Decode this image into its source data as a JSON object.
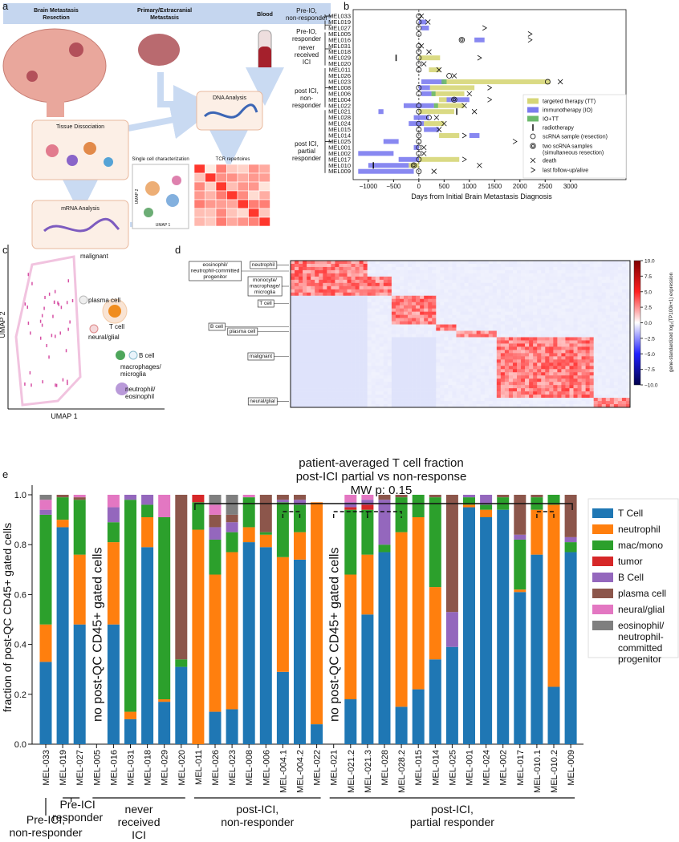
{
  "panel_labels": [
    "a",
    "b",
    "c",
    "d",
    "e"
  ],
  "diagram_a": {
    "sources": [
      "Brain Metastasis\nResection",
      "Primary/Extracranial\nMetastasis",
      "Blood"
    ],
    "steps": [
      "Tissue Dissociation",
      "DNA Analysis",
      "mRNA Analysis"
    ],
    "outputs": [
      "Single cell characterization",
      "TCR repertoires"
    ],
    "umap_axes": [
      "UMAP 2",
      "UMAP 1"
    ]
  },
  "umap_c": {
    "xlabel": "UMAP 1",
    "ylabel": "UMAP 2",
    "clusters": [
      "malignant",
      "plasma cell",
      "T cell",
      "neural/glial",
      "B cell",
      "macrophages/\nmicroglia",
      "neutrophil/\neosinophil"
    ]
  },
  "heatmap_d": {
    "row_labels": [
      "eosinophil/\nneutrophil-committed\nprogenitor",
      "neutrophil",
      "monocyte/\nmacrophage/\nmicroglia",
      "T cell",
      "B cell",
      "plasma cell",
      "malignant",
      "neural/glial"
    ],
    "colorbar": {
      "label": "gene-standardized log₂(TP100k+1) expression",
      "lim": [
        -10,
        10
      ],
      "ticks": [
        {
          "value": 10,
          "label": "10.0"
        },
        7.5,
        {
          "value": 5,
          "label": "5.0"
        },
        2.5,
        {
          "value": 0,
          "label": "0.0"
        },
        {
          "value": -2.5,
          "label": "−2.5"
        },
        {
          "value": -5,
          "label": "−5.0"
        },
        {
          "value": -7.5,
          "label": "−7.5"
        },
        {
          "value": -10,
          "label": "−10.0"
        }
      ]
    }
  },
  "chart_data": [
    {
      "type": "swimmer",
      "xlabel": "Days from Initial Brain Metastasis Diagnosis",
      "xlim": [
        -1300,
        4100
      ],
      "xticks": [
        {
          "value": -1000,
          "label": "−1000"
        },
        {
          "value": -500,
          "label": "−500"
        },
        0,
        500,
        1000,
        1500,
        2000,
        2500,
        3000
      ],
      "groups": [
        "Pre-IO,\nnon-responder",
        "Pre-IO,\nresponder",
        "never\nreceived\nICI",
        "post ICI,\nnon-\nresponder",
        "post ICI,\npartial\nresponder"
      ],
      "categories": [
        "MEL033",
        "MEL019",
        "MEL027",
        "MEL005",
        "MEL016",
        "MEL031",
        "MEL018",
        "MEL029",
        "MEL020",
        "MEL011",
        "MEL026",
        "MEL023",
        "MEL008",
        "MEL006",
        "MEL004",
        "MEL022",
        "MEL021",
        "MEL028",
        "MEL024",
        "MEL015",
        "MEL014",
        "MEL025",
        "MEL001",
        "MEL002",
        "MEL017",
        "MEL010",
        "MEL009"
      ],
      "series": [
        {
          "name": "targeted therapy (TT)",
          "color": "#d6d677",
          "marker": "rect",
          "values": [
            null,
            null,
            null,
            null,
            null,
            null,
            null,
            [
              0,
              420
            ],
            null,
            [
              200,
              420
            ],
            null,
            [
              500,
              2600
            ],
            [
              220,
              1100
            ],
            [
              250,
              900
            ],
            [
              400,
              550
            ],
            [
              300,
              900
            ],
            [
              0,
              700
            ],
            null,
            [
              100,
              500
            ],
            null,
            [
              400,
              800
            ],
            null,
            null,
            null,
            [
              0,
              800
            ],
            [
              -200,
              0
            ],
            null
          ]
        },
        {
          "name": "immunotherapy (IO)",
          "color": "#7b7bef",
          "marker": "rect",
          "values": [
            null,
            [
              0,
              150
            ],
            [
              50,
              200
            ],
            null,
            [
              1100,
              1300
            ],
            null,
            null,
            null,
            null,
            null,
            null,
            [
              50,
              500
            ],
            [
              0,
              220
            ],
            [
              50,
              250
            ],
            [
              550,
              1000
            ],
            [
              -300,
              300
            ],
            [
              -800,
              -700
            ],
            [
              -100,
              200
            ],
            [
              -200,
              100
            ],
            [
              100,
              400
            ],
            [
              1000,
              1200
            ],
            [
              -700,
              -400
            ],
            [
              -100,
              0
            ],
            [
              -1200,
              -500
            ],
            [
              -400,
              0
            ],
            [
              -1000,
              -200
            ],
            [
              -1200,
              -100
            ]
          ]
        },
        {
          "name": "IO+TT",
          "color": "#6cb96c",
          "marker": "rect",
          "values": [
            null,
            null,
            null,
            null,
            null,
            null,
            null,
            null,
            null,
            null,
            null,
            [
              450,
              550
            ],
            null,
            [
              250,
              330
            ],
            null,
            [
              300,
              380
            ],
            null,
            null,
            null,
            null,
            null,
            null,
            null,
            null,
            null,
            null,
            null
          ]
        },
        {
          "name": "radiotherapy",
          "color": "#111111",
          "marker": "vline",
          "values": [
            null,
            null,
            null,
            null,
            null,
            null,
            null,
            -450,
            null,
            null,
            null,
            null,
            null,
            null,
            null,
            null,
            750,
            null,
            null,
            null,
            null,
            null,
            null,
            null,
            null,
            -900,
            null
          ]
        },
        {
          "name": "scRNA sample (resection)",
          "color": "#111111",
          "marker": "circle",
          "values": [
            0,
            0,
            0,
            0,
            null,
            0,
            0,
            0,
            0,
            0,
            600,
            2550,
            0,
            0,
            null,
            0,
            0,
            200,
            0,
            0,
            0,
            0,
            0,
            0,
            0,
            null,
            0
          ]
        },
        {
          "name": "two scRNA samples\n(simultaneous resection)",
          "color": "#111111",
          "marker": "double-circle",
          "values": [
            null,
            null,
            null,
            null,
            850,
            null,
            null,
            null,
            null,
            null,
            null,
            null,
            null,
            null,
            700,
            null,
            null,
            null,
            null,
            null,
            null,
            null,
            null,
            null,
            null,
            -100,
            null
          ]
        },
        {
          "name": "death",
          "color": "#111111",
          "marker": "x",
          "values": [
            50,
            180,
            null,
            null,
            null,
            50,
            200,
            null,
            100,
            400,
            700,
            2800,
            null,
            1000,
            null,
            900,
            1100,
            350,
            500,
            400,
            null,
            null,
            100,
            100,
            null,
            1200,
            300
          ]
        },
        {
          "name": "last follow-up/alive",
          "color": "#111111",
          "marker": "triangle",
          "values": [
            null,
            null,
            1300,
            2200,
            2200,
            null,
            null,
            1200,
            null,
            null,
            null,
            null,
            1400,
            null,
            1400,
            null,
            null,
            null,
            null,
            null,
            900,
            1900,
            null,
            null,
            900,
            null,
            null
          ]
        }
      ]
    },
    {
      "type": "stacked_bar",
      "title": "patient-averaged T cell fraction\npost-ICI partial vs non-response\nMW p: 0.15",
      "ylabel": "fraction of post-QC CD45+ gated cells",
      "ylim": [
        0,
        1
      ],
      "yticks": [
        {
          "value": 0,
          "label": "0.0"
        },
        {
          "value": 0.2,
          "label": "0.2"
        },
        {
          "value": 0.4,
          "label": "0.4"
        },
        {
          "value": 0.6,
          "label": "0.6"
        },
        {
          "value": 0.8,
          "label": "0.8"
        },
        {
          "value": 1,
          "label": "1.0"
        }
      ],
      "annotations": [
        "no post-QC CD45+ gated cells",
        "no post-QC CD45+ gated cells"
      ],
      "groups": [
        "Pre-ICI,\nnon-responder",
        "Pre-ICI\nresponder",
        "never\nreceived\nICI",
        "post-ICI,\nnon-responder",
        "post-ICI,\npartial responder"
      ],
      "categories": [
        "MEL-033",
        "MEL-019",
        "MEL-027",
        "MEL-005",
        "MEL-016",
        "MEL-031",
        "MEL-018",
        "MEL-029",
        "MEL-020",
        "MEL-011",
        "MEL-026",
        "MEL-023",
        "MEL-008",
        "MEL-006",
        "MEL-004.1",
        "MEL-004.2",
        "MEL-022",
        "MEL-021",
        "MEL-021.2",
        "MEL-021.3",
        "MEL-028",
        "MEL-028.2",
        "MEL-015",
        "MEL-014",
        "MEL-025",
        "MEL-001",
        "MEL-024",
        "MEL-002",
        "MEL-017",
        "MEL-010.1",
        "MEL-010.2",
        "MEL-009"
      ],
      "series": [
        {
          "name": "T Cell",
          "color": "#1f77b4",
          "values": [
            0.33,
            0.87,
            0.48,
            null,
            0.48,
            0.1,
            0.79,
            0.17,
            0.31,
            0,
            0.13,
            0.14,
            0.81,
            0.79,
            0.29,
            0.74,
            0.08,
            null,
            0.18,
            0.52,
            0.77,
            0.15,
            0.22,
            0.34,
            0.39,
            0.95,
            0.91,
            0.94,
            0.61,
            0.76,
            0.23,
            0.77
          ]
        },
        {
          "name": "neutrophil",
          "color": "#ff7f0e",
          "values": [
            0.15,
            0.03,
            0.28,
            null,
            0.33,
            0.03,
            0.12,
            0.01,
            0,
            0.86,
            0.55,
            0.63,
            0.06,
            0.05,
            0.46,
            0.11,
            0.89,
            null,
            0.5,
            0.24,
            0,
            0.7,
            0.69,
            0.29,
            0,
            0.01,
            0.03,
            0,
            0.01,
            0.18,
            0.73,
            0
          ]
        },
        {
          "name": "mac/mono",
          "color": "#2ca02c",
          "values": [
            0.44,
            0.09,
            0.22,
            null,
            0.08,
            0.85,
            0.05,
            0.73,
            0.03,
            0.11,
            0.14,
            0.08,
            0.12,
            0.01,
            0.22,
            0.11,
            0,
            null,
            0.26,
            0.18,
            0.03,
            0.14,
            0.09,
            0.36,
            0,
            0.03,
            0.02,
            0.05,
            0.2,
            0.05,
            0.04,
            0.04
          ]
        },
        {
          "name": "tumor",
          "color": "#d62728",
          "values": [
            0,
            0,
            0,
            null,
            0,
            0,
            0,
            0,
            0,
            0.03,
            0,
            0,
            0,
            0,
            0,
            0,
            0,
            null,
            0.01,
            0.02,
            0,
            0,
            0,
            0,
            0,
            0,
            0,
            0,
            0,
            0,
            0,
            0
          ]
        },
        {
          "name": "B Cell",
          "color": "#9467bd",
          "values": [
            0.02,
            0,
            0,
            null,
            0.06,
            0.02,
            0.04,
            0,
            0,
            0,
            0.05,
            0.04,
            0,
            0,
            0.01,
            0.02,
            0,
            null,
            0.02,
            0.02,
            0.18,
            0,
            0,
            0,
            0.14,
            0.01,
            0.04,
            0,
            0.02,
            0,
            0,
            0.02
          ]
        },
        {
          "name": "plasma cell",
          "color": "#8c564b",
          "values": [
            0,
            0.01,
            0.01,
            null,
            0,
            0,
            0,
            0,
            0.66,
            0,
            0.05,
            0.03,
            0,
            0.15,
            0.02,
            0.02,
            0,
            null,
            0,
            0,
            0.02,
            0.01,
            0,
            0.01,
            0.47,
            0,
            0,
            0.01,
            0.16,
            0.01,
            0,
            0.17
          ]
        },
        {
          "name": "neural/glial",
          "color": "#e377c2",
          "values": [
            0.04,
            0,
            0.01,
            null,
            0.05,
            0,
            0,
            0.09,
            0,
            0,
            0.04,
            0,
            0.01,
            0,
            0,
            0,
            0,
            null,
            0.03,
            0.02,
            0,
            0,
            0,
            0,
            0,
            0,
            0,
            0,
            0,
            0,
            0,
            0
          ]
        },
        {
          "name": "eosinophil/\nneutrophil-\ncommitted\nprogenitor",
          "color": "#7f7f7f",
          "values": [
            0.02,
            0,
            0,
            null,
            0,
            0,
            0,
            0,
            0,
            0,
            0.04,
            0.08,
            0,
            0,
            0,
            0,
            0,
            null,
            0,
            0,
            0,
            0,
            0,
            0,
            0,
            0,
            0,
            0,
            0,
            0,
            0,
            0
          ]
        }
      ]
    }
  ]
}
